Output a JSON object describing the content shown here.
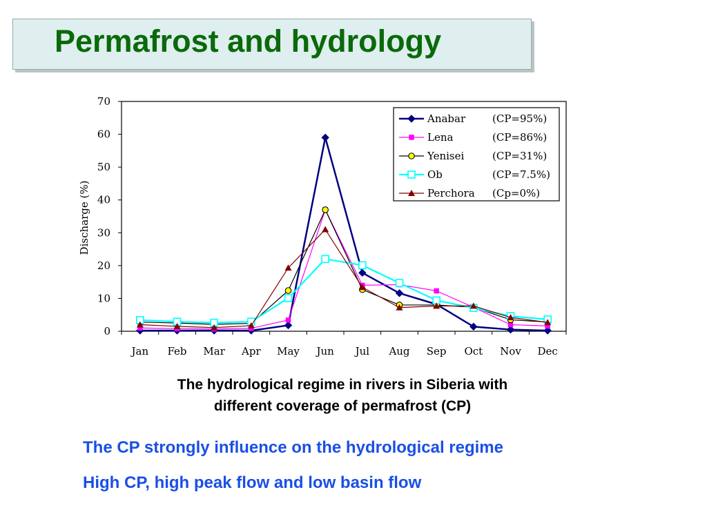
{
  "slide": {
    "title": "Permafrost and hydrology",
    "caption_line1": "The hydrological regime in rivers in Siberia with",
    "caption_line2": "different coverage of permafrost (CP)",
    "note1": "The CP strongly influence on the hydrological regime",
    "note2": "High CP, high peak flow and low basin flow"
  },
  "colors": {
    "title": "#0a6a0a",
    "notes": "#1a4fe6"
  },
  "chart_data": {
    "type": "line",
    "ylabel": "Discharge (%)",
    "xlabel": "",
    "ylim": [
      0,
      70
    ],
    "yticks": [
      0,
      10,
      20,
      30,
      40,
      50,
      60,
      70
    ],
    "categories": [
      "Jan",
      "Feb",
      "Mar",
      "Apr",
      "May",
      "Jun",
      "Jul",
      "Aug",
      "Sep",
      "Oct",
      "Nov",
      "Dec"
    ],
    "legend_position": "top-right",
    "series": [
      {
        "name": "Anabar",
        "cp": "(CP=95%)",
        "color": "#000080",
        "marker": "diamond",
        "width": 2.5,
        "values": [
          0.2,
          0.2,
          0.2,
          0.2,
          1.8,
          59,
          17.8,
          11.6,
          8.2,
          1.4,
          0.5,
          0.2
        ]
      },
      {
        "name": "Lena",
        "cp": "(CP=86%)",
        "color": "#ff00ff",
        "marker": "square",
        "width": 1.2,
        "values": [
          1.0,
          0.8,
          0.7,
          0.9,
          3.4,
          37,
          14,
          14.2,
          12.3,
          7.3,
          2.0,
          1.6
        ]
      },
      {
        "name": "Yenisei",
        "cp": "(CP=31%)",
        "color": "#000000",
        "marker": "circle",
        "width": 1.2,
        "values": [
          2.8,
          2.5,
          2.1,
          2.4,
          12.4,
          37,
          12.7,
          8,
          8,
          7.3,
          3.5,
          2.8
        ]
      },
      {
        "name": "Ob",
        "cp": "(CP=7.5%)",
        "color": "#00ffff",
        "marker": "open-square",
        "width": 2.2,
        "values": [
          3.4,
          2.9,
          2.6,
          2.9,
          10.1,
          22,
          20.1,
          14.7,
          9.4,
          7.1,
          4.6,
          3.6
        ]
      },
      {
        "name": "Perchora",
        "cp": "(Cp=0%)",
        "color": "#800000",
        "marker": "triangle",
        "width": 1.2,
        "values": [
          2.0,
          1.5,
          1.1,
          1.7,
          19.3,
          31,
          13.4,
          7.2,
          7.7,
          7.7,
          4.2,
          2.7
        ]
      }
    ]
  }
}
